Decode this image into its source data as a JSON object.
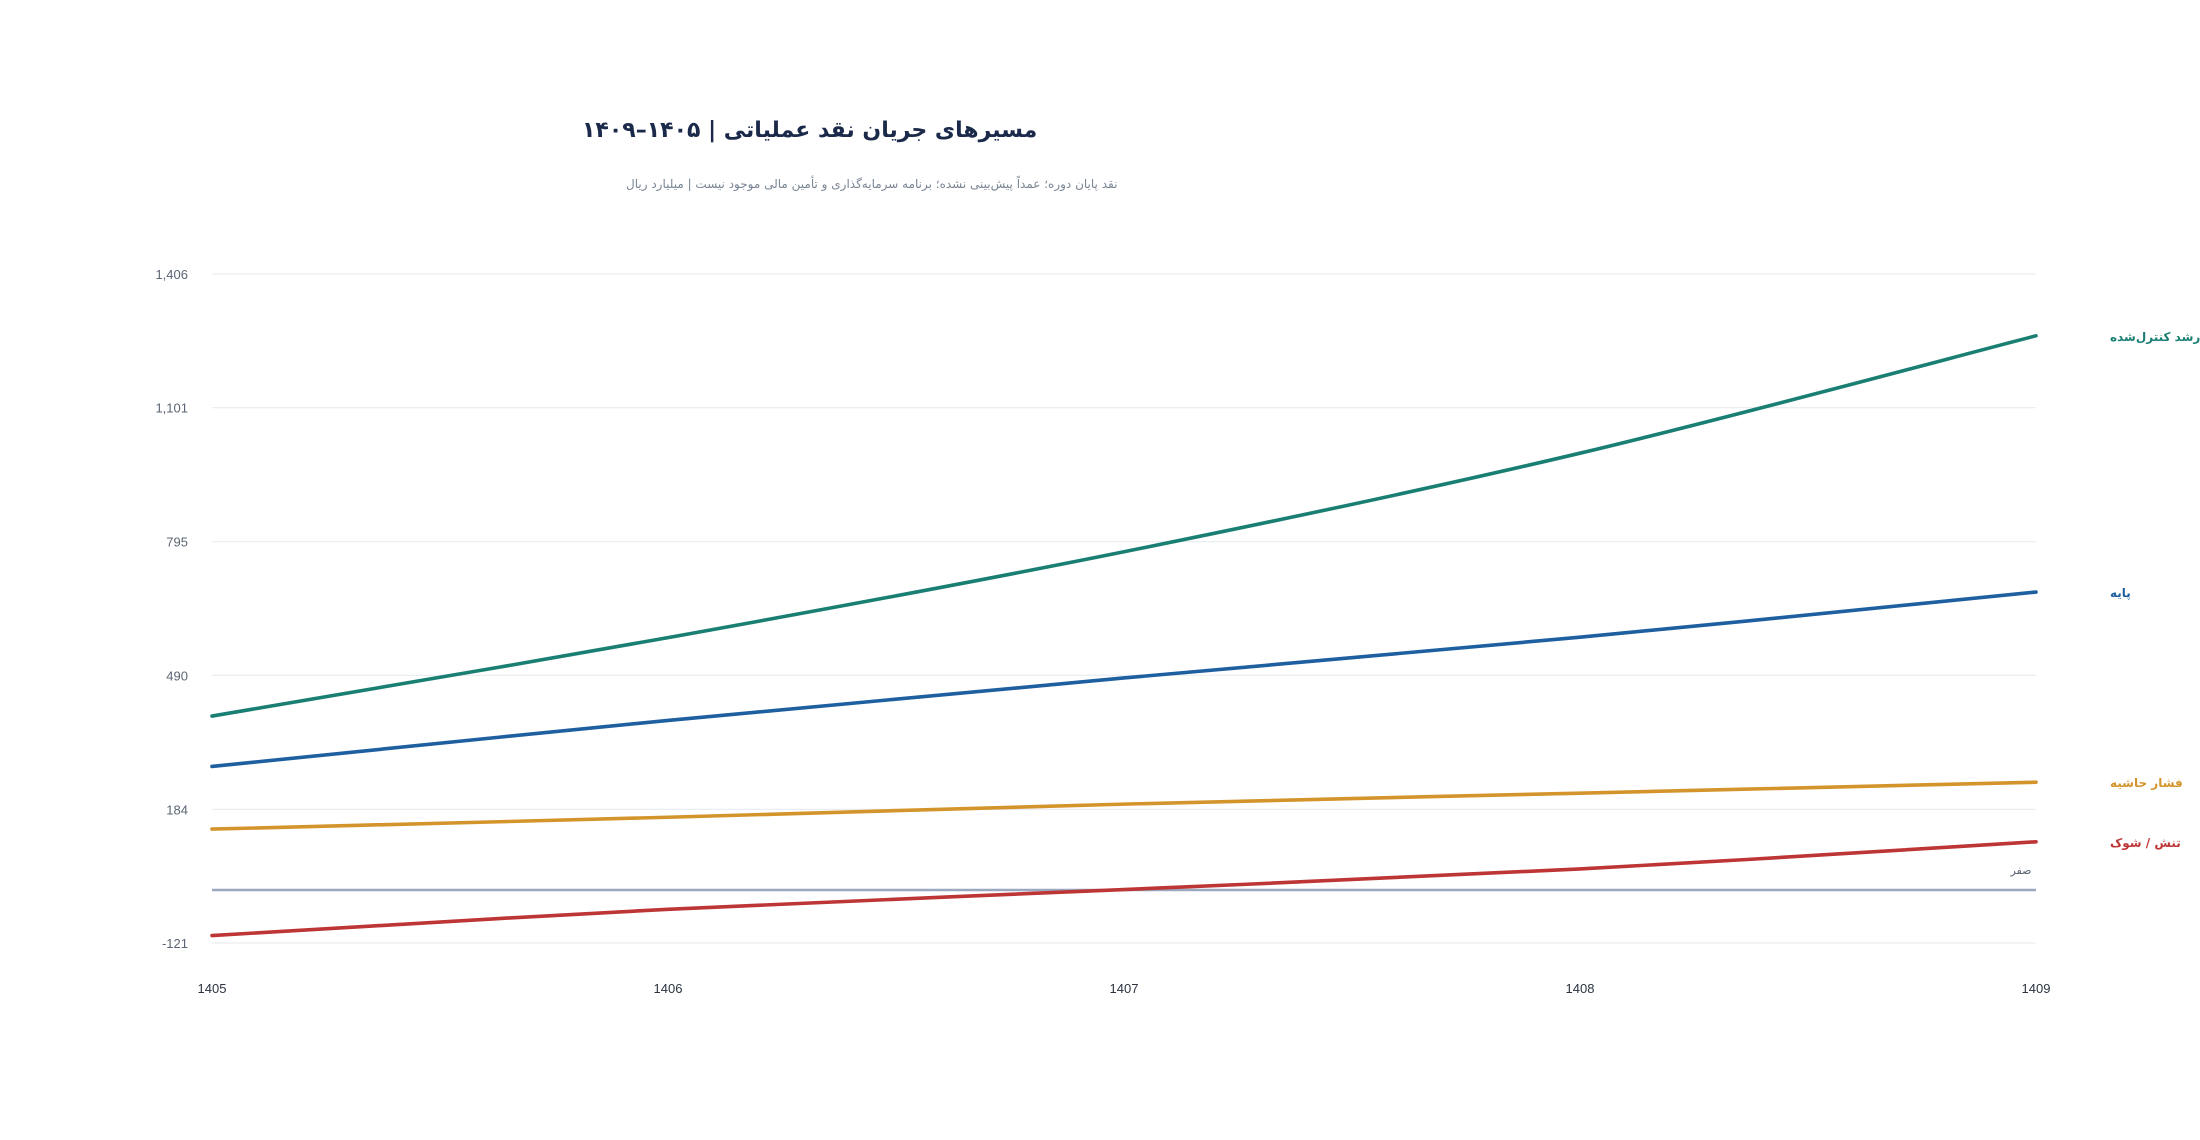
{
  "chart_data": {
    "type": "line",
    "title": "مسیرهای جریان نقد عملیاتی | ۱۴۰۵–۱۴۰۹",
    "subtitle": "نقد پایان دوره؛ عمداً پیش‌بینی نشده؛ برنامه سرمایه‌گذاری و تأمین مالی موجود نیست | میلیارد ریال",
    "x": [
      "1405",
      "1406",
      "1407",
      "1408",
      "1409"
    ],
    "yticks": [
      -121,
      184,
      490,
      795,
      1101,
      1406
    ],
    "ytick_labels": [
      "-121",
      "184",
      "490",
      "795",
      "1,101",
      "1,406"
    ],
    "ylim": [
      -121,
      1406
    ],
    "grid": true,
    "legend": "direct labels at line ends (right)",
    "zero_line": {
      "value": 0,
      "label": "صفر",
      "color": "#9aa8c0"
    },
    "series": [
      {
        "name": "رشد کنترل‌شده",
        "color": "#1a7f73",
        "values": [
          397,
          576,
          772,
          997,
          1265
        ]
      },
      {
        "name": "پایه",
        "color": "#1e5fa0",
        "values": [
          282,
          387,
          484,
          577,
          680
        ]
      },
      {
        "name": "فشار حاشیه",
        "color": "#d4942c",
        "values": [
          139,
          166,
          196,
          221,
          246
        ]
      },
      {
        "name": "تنش / شوک",
        "color": "#be3535",
        "values": [
          -104,
          -44,
          1,
          48,
          110
        ]
      }
    ]
  }
}
